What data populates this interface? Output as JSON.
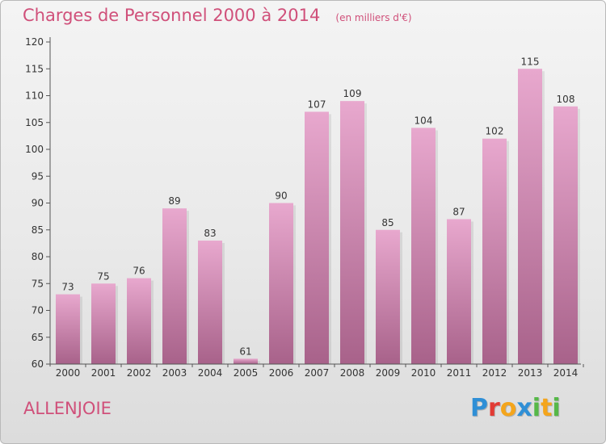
{
  "title": "Charges de Personnel 2000 à 2014",
  "subtitle": "(en milliers d'€)",
  "commune": "ALLENJOIE",
  "logo": {
    "text": "Proxiti",
    "letters": [
      {
        "ch": "P",
        "color": "#2f8fd6"
      },
      {
        "ch": "r",
        "color": "#e23b34"
      },
      {
        "ch": "o",
        "color": "#f4a51c"
      },
      {
        "ch": "x",
        "color": "#2f8fd6"
      },
      {
        "ch": "i",
        "color": "#56b848"
      },
      {
        "ch": "t",
        "color": "#f4a51c"
      },
      {
        "ch": "i",
        "color": "#56b848"
      }
    ]
  },
  "colors": {
    "bar_top": "#e8a8ce",
    "bar_bottom": "#a8628a",
    "accent": "#d0507a"
  },
  "chart_data": {
    "type": "bar",
    "categories": [
      "2000",
      "2001",
      "2002",
      "2003",
      "2004",
      "2005",
      "2006",
      "2007",
      "2008",
      "2009",
      "2010",
      "2011",
      "2012",
      "2013",
      "2014"
    ],
    "values": [
      73,
      75,
      76,
      89,
      83,
      61,
      90,
      107,
      109,
      85,
      104,
      87,
      102,
      115,
      108
    ],
    "ylim": [
      60,
      120
    ],
    "yticks": [
      60,
      65,
      70,
      75,
      80,
      85,
      90,
      95,
      100,
      105,
      110,
      115,
      120
    ],
    "grid": false,
    "xlabel": "",
    "ylabel": ""
  }
}
